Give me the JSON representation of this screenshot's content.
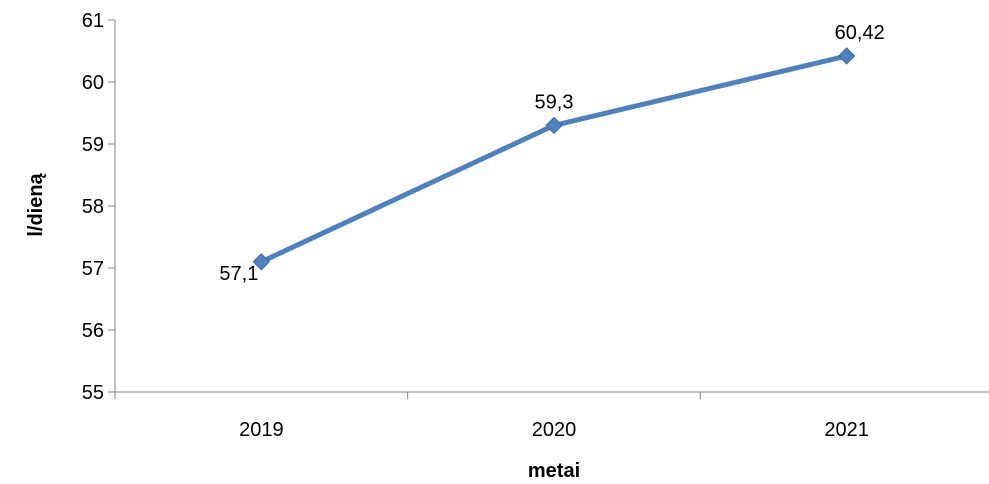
{
  "chart_data": {
    "type": "line",
    "title": "",
    "xlabel": "metai",
    "ylabel": "l/dieną",
    "categories": [
      "2019",
      "2020",
      "2021"
    ],
    "series": [
      {
        "values": [
          57.1,
          59.3,
          60.42
        ],
        "data_labels": [
          "57,1",
          "59,3",
          "60,42"
        ],
        "color": "#4F81BD",
        "marker": "diamond"
      }
    ],
    "ylim": [
      55,
      61
    ],
    "yticks": [
      "55",
      "56",
      "57",
      "58",
      "59",
      "60",
      "61"
    ],
    "grid": false,
    "legend": "none"
  }
}
